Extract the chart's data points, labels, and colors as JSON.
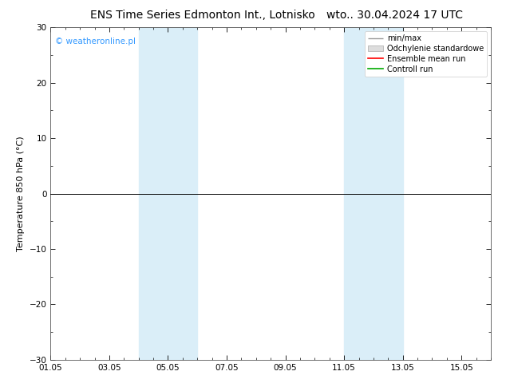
{
  "title_left": "ENS Time Series Edmonton Int., Lotnisko",
  "title_right": "wto.. 30.04.2024 17 UTC",
  "ylabel": "Temperature 850 hPa (°C)",
  "ylim": [
    -30,
    30
  ],
  "yticks": [
    -30,
    -20,
    -10,
    0,
    10,
    20,
    30
  ],
  "xlim": [
    0,
    15
  ],
  "xtick_labels": [
    "01.05",
    "03.05",
    "05.05",
    "07.05",
    "09.05",
    "11.05",
    "13.05",
    "15.05"
  ],
  "xtick_positions": [
    0,
    2,
    4,
    6,
    8,
    10,
    12,
    14
  ],
  "shaded_bands": [
    {
      "x_start": 3.0,
      "x_end": 5.0,
      "color": "#daeef8"
    },
    {
      "x_start": 10.0,
      "x_end": 12.0,
      "color": "#daeef8"
    }
  ],
  "zero_line_y": 0,
  "watermark": "© weatheronline.pl",
  "watermark_color": "#3399ff",
  "legend_items": [
    {
      "label": "min/max",
      "color": "#999999",
      "type": "hline"
    },
    {
      "label": "Odchylenie standardowe",
      "color": "#cccccc",
      "type": "bar"
    },
    {
      "label": "Ensemble mean run",
      "color": "#ff0000",
      "type": "line"
    },
    {
      "label": "Controll run",
      "color": "#00aa00",
      "type": "line"
    }
  ],
  "background_color": "#ffffff",
  "plot_bg_color": "#ffffff",
  "title_fontsize": 10,
  "axis_fontsize": 8,
  "tick_fontsize": 7.5,
  "legend_fontsize": 7,
  "watermark_fontsize": 7.5
}
